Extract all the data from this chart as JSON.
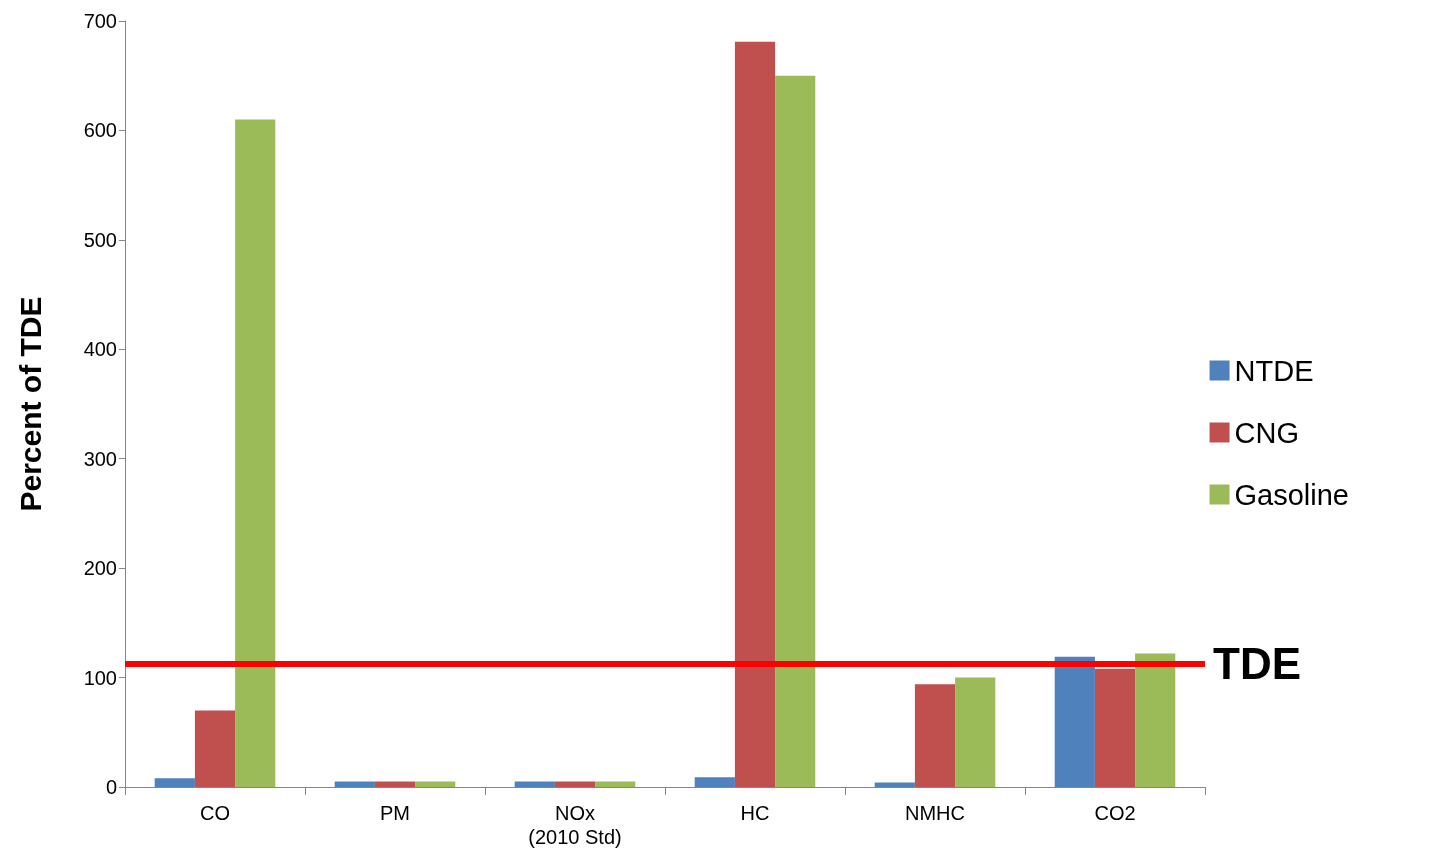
{
  "chart_data": {
    "type": "bar",
    "ylabel": "Percent of TDE",
    "categories": [
      "CO",
      "PM",
      "NOx\n(2010 Std)",
      "HC",
      "NMHC",
      "CO2"
    ],
    "series": [
      {
        "name": "NTDE",
        "color": "#4f81bd",
        "values": [
          8,
          5,
          5,
          9,
          4,
          119
        ]
      },
      {
        "name": "CNG",
        "color": "#c0504d",
        "values": [
          70,
          5,
          5,
          681,
          94,
          108
        ]
      },
      {
        "name": "Gasoline",
        "color": "#9bbb59",
        "values": [
          610,
          5,
          5,
          650,
          100,
          122
        ]
      }
    ],
    "ylim": [
      0,
      700
    ],
    "yticks": [
      0,
      100,
      200,
      300,
      400,
      500,
      600,
      700
    ],
    "ref_lines": [
      {
        "axis": "y",
        "value": 113,
        "label": "TDE",
        "color": "#ff0000"
      }
    ],
    "grid": false,
    "legend": "right"
  }
}
